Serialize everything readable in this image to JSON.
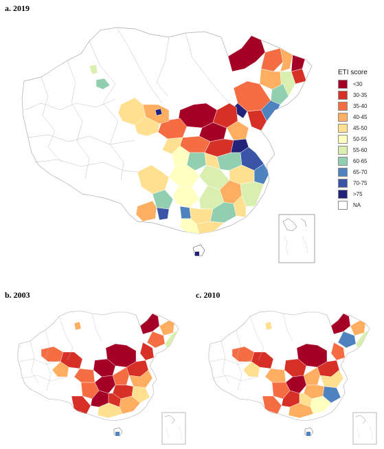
{
  "panels": [
    {
      "label": "a. 2019"
    },
    {
      "label": "b. 2003"
    },
    {
      "label": "c. 2010"
    }
  ],
  "legend": {
    "title": "ETI score",
    "items": [
      {
        "label": "<30",
        "color": "#a50026"
      },
      {
        "label": "30-35",
        "color": "#d73027"
      },
      {
        "label": "35-40",
        "color": "#f46d43"
      },
      {
        "label": "40-45",
        "color": "#fdae61"
      },
      {
        "label": "45-50",
        "color": "#fee090"
      },
      {
        "label": "50-55",
        "color": "#ffffbf"
      },
      {
        "label": "55-60",
        "color": "#d9efb0"
      },
      {
        "label": "60-65",
        "color": "#91cfb0"
      },
      {
        "label": "65-70",
        "color": "#4f83c0"
      },
      {
        "label": "70-75",
        "color": "#3a55a6"
      },
      {
        "label": ">75",
        "color": "#24237a"
      },
      {
        "label": "NA",
        "color": "#ffffff"
      }
    ]
  }
}
